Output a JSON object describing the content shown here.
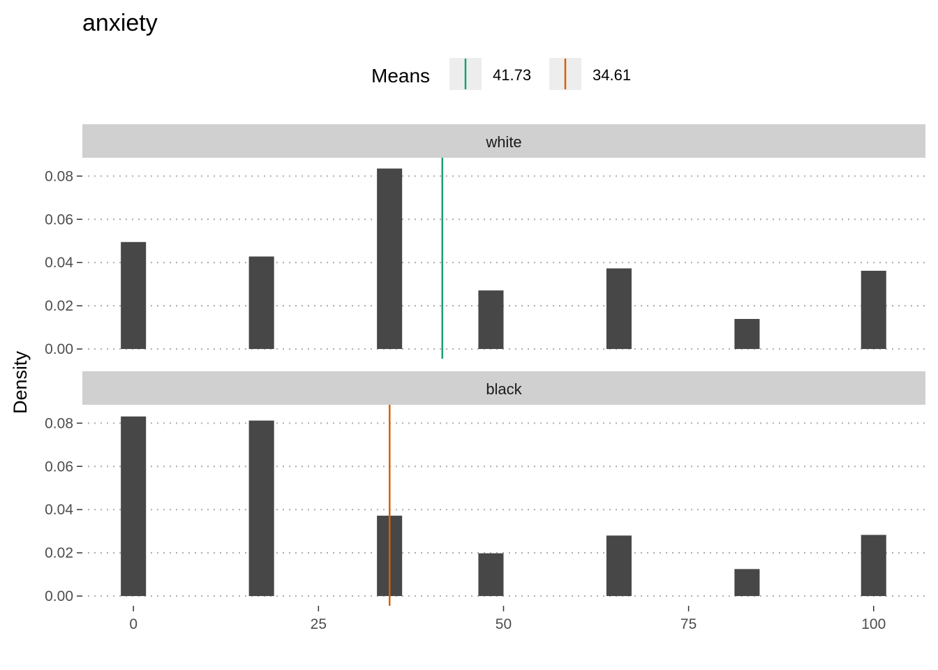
{
  "chart_data": {
    "type": "bar",
    "title": "anxiety",
    "ylabel": "Density",
    "xlabel": "",
    "xlim": [
      -6.9,
      107
    ],
    "ylim": [
      -0.0045,
      0.0885
    ],
    "x_ticks": [
      0,
      25,
      50,
      75,
      100
    ],
    "x_tick_labels": [
      "0",
      "25",
      "50",
      "75",
      "100"
    ],
    "y_ticks": [
      0,
      0.02,
      0.04,
      0.06,
      0.08
    ],
    "y_tick_labels": [
      "0.00",
      "0.02",
      "0.04",
      "0.06",
      "0.08"
    ],
    "bar_color": "#474747",
    "x": [
      0,
      17.3,
      34.6,
      48.3,
      65.6,
      82.9,
      100
    ],
    "bar_width": 3.4,
    "grid": "dotted horizontal",
    "legend": {
      "title": "Means",
      "placement": "top",
      "entries": [
        {
          "label": "41.73",
          "color": "#1b9e77"
        },
        {
          "label": "34.61",
          "color": "#d95f02"
        }
      ]
    },
    "panels": [
      {
        "name": "white",
        "values": [
          0.0495,
          0.0428,
          0.0835,
          0.0271,
          0.0373,
          0.0139,
          0.0362
        ],
        "mean": 41.73,
        "mean_color": "#1b9e77"
      },
      {
        "name": "black",
        "values": [
          0.0831,
          0.0812,
          0.0372,
          0.0198,
          0.028,
          0.0125,
          0.0283
        ],
        "mean": 34.61,
        "mean_color": "#d95f02"
      }
    ]
  }
}
